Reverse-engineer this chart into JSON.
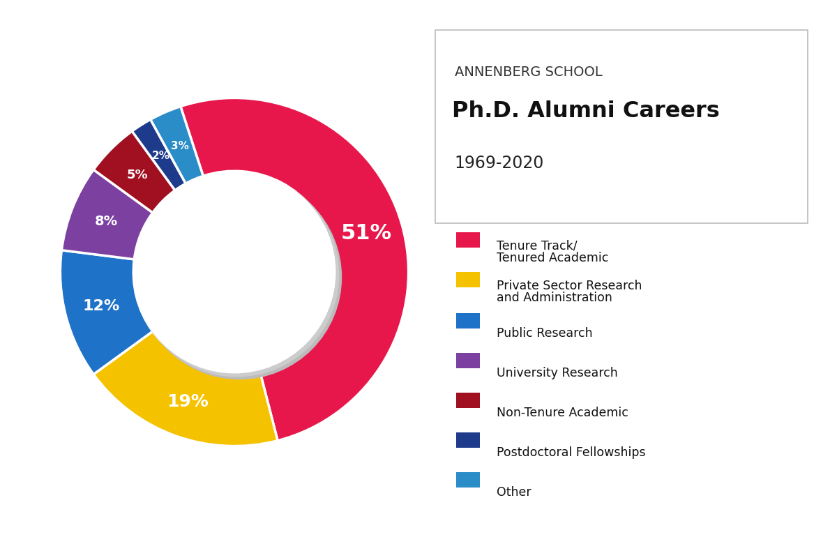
{
  "title_line1": "ANNENBERG SCHOOL",
  "title_line2": "Ph.D. Alumni Careers",
  "title_line3": "1969-2020",
  "slices": [
    51,
    19,
    12,
    8,
    5,
    2,
    3
  ],
  "labels": [
    "51%",
    "19%",
    "12%",
    "8%",
    "5%",
    "2%",
    "3%"
  ],
  "colors": [
    "#E8174B",
    "#F5C200",
    "#1E72C8",
    "#7B40A0",
    "#A01020",
    "#1E3A8A",
    "#2B8DC8"
  ],
  "legend_labels": [
    "Tenure Track/\nTenured Academic",
    "Private Sector Research\nand Administration",
    "Public Research",
    "University Research",
    "Non-Tenure Academic",
    "Postdoctoral Fellowships",
    "Other"
  ],
  "legend_colors": [
    "#E8174B",
    "#F5C200",
    "#1E72C8",
    "#7B40A0",
    "#A01020",
    "#1E3A8A",
    "#2B8DC8"
  ],
  "background_color": "#FFFFFF",
  "text_color_white": "#FFFFFF",
  "start_angle": 108,
  "donut_width": 0.42
}
